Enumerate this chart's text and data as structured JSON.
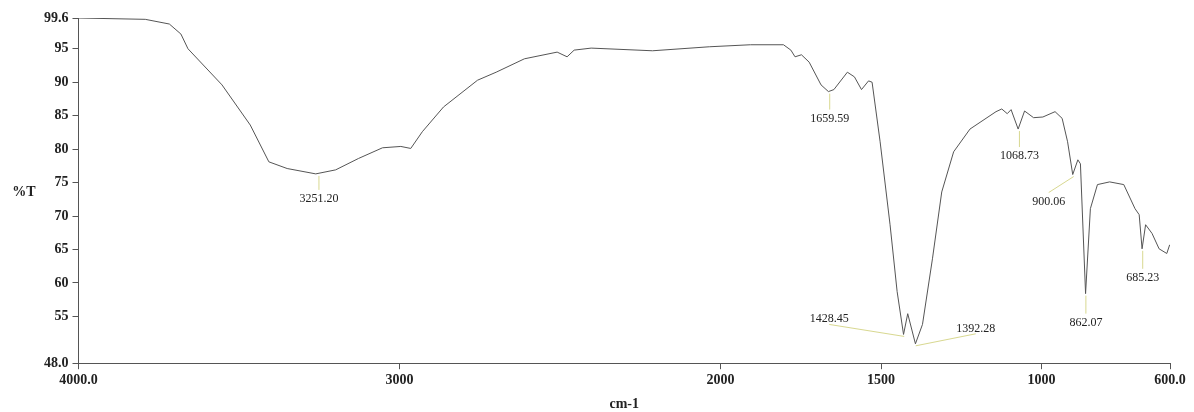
{
  "chart_data": {
    "type": "line",
    "xlabel": "cm-1",
    "ylabel": "%T",
    "x": [
      4000,
      3792,
      3717,
      3681,
      3659,
      3553,
      3465,
      3407,
      3350,
      3261,
      3199,
      3128,
      3053,
      2996,
      2965,
      2929,
      2863,
      2757,
      2699,
      2611,
      2509,
      2478,
      2456,
      2403,
      2212,
      2035,
      1907,
      1804,
      1781,
      1768,
      1748,
      1724,
      1687,
      1664,
      1647,
      1605,
      1583,
      1561,
      1539,
      1528,
      1503,
      1472,
      1450,
      1430,
      1417,
      1393,
      1371,
      1340,
      1311,
      1274,
      1223,
      1142,
      1124,
      1107,
      1095,
      1073,
      1053,
      1025,
      996,
      958,
      936,
      919,
      903,
      887,
      879,
      863,
      848,
      826,
      788,
      744,
      709,
      696,
      687,
      676,
      656,
      634,
      610,
      601
    ],
    "series": [
      {
        "color": "#555555",
        "values": [
          99.6,
          99.4,
          98.7,
          97.2,
          95.0,
          89.6,
          83.6,
          78.1,
          77.1,
          76.3,
          76.9,
          78.6,
          80.2,
          80.4,
          80.1,
          82.6,
          86.3,
          90.3,
          91.5,
          93.5,
          94.5,
          93.8,
          94.8,
          95.1,
          94.7,
          95.3,
          95.6,
          95.6,
          94.8,
          93.8,
          94.1,
          93.0,
          89.6,
          88.6,
          88.9,
          91.5,
          90.8,
          88.9,
          90.2,
          90.0,
          81.1,
          68.7,
          58.7,
          52.3,
          55.4,
          50.9,
          53.8,
          63.6,
          73.6,
          79.6,
          83.0,
          85.6,
          86.0,
          85.3,
          85.9,
          83.0,
          85.7,
          84.7,
          84.8,
          85.6,
          84.6,
          81.1,
          76.2,
          78.4,
          77.8,
          58.4,
          71.1,
          74.7,
          75.1,
          74.7,
          71.1,
          70.2,
          65.1,
          68.7,
          67.4,
          65.1,
          64.4,
          65.7
        ]
      }
    ],
    "xlim": [
      4000,
      600
    ],
    "xticks": [
      {
        "value": 4000,
        "label": "4000.0"
      },
      3000,
      2000,
      1500,
      1000,
      {
        "value": 600,
        "label": "600.0"
      }
    ],
    "ylim": [
      48,
      99.6
    ],
    "yticks": [
      {
        "value": 48,
        "label": "48.0"
      },
      55,
      60,
      65,
      70,
      75,
      80,
      85,
      90,
      95,
      99.6
    ],
    "marker": "none",
    "grid": false,
    "legend": false,
    "annotations": [
      {
        "text": "3251.20",
        "x": 3251,
        "y": 76.3
      },
      {
        "text": "1659.59",
        "x": 1660,
        "y": 88.6
      },
      {
        "text": "1428.45",
        "x": 1428,
        "y": 52.3
      },
      {
        "text": "1392.28",
        "x": 1392,
        "y": 50.9
      },
      {
        "text": "1068.73",
        "x": 1069,
        "y": 83.0
      },
      {
        "text": "900.06",
        "x": 900,
        "y": 76.2
      },
      {
        "text": "862.07",
        "x": 862,
        "y": 58.4
      },
      {
        "text": "685.23",
        "x": 685,
        "y": 65.1
      }
    ]
  }
}
